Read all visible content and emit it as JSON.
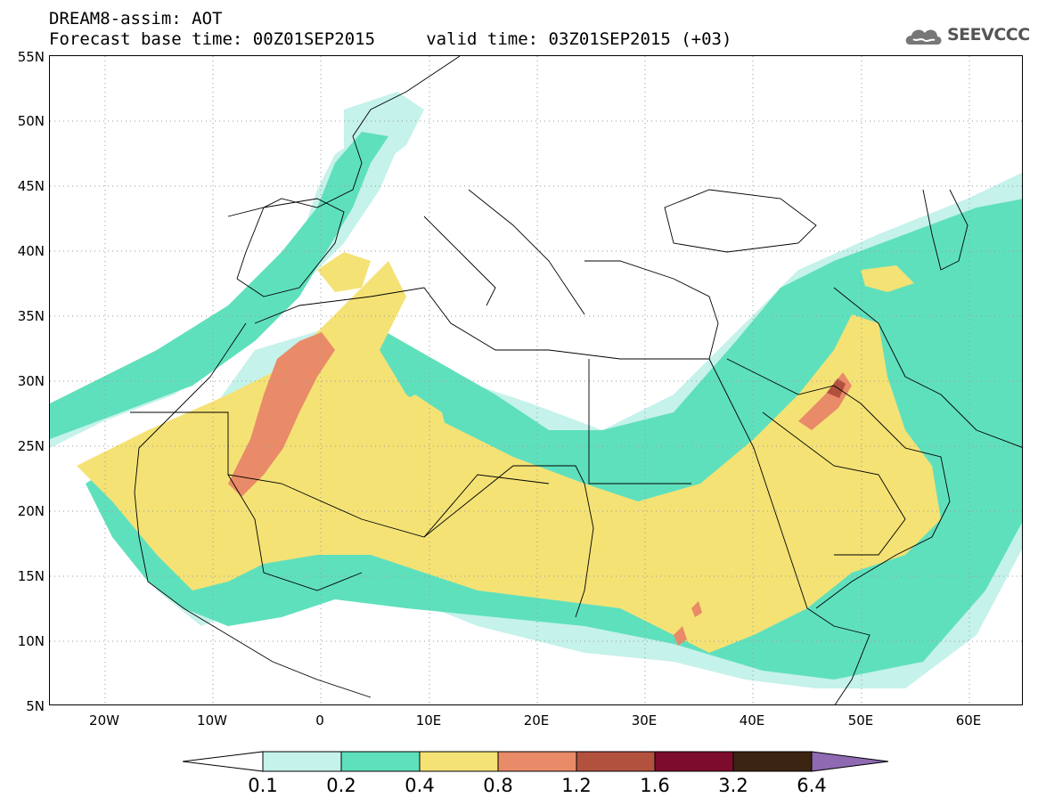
{
  "header": {
    "title_line1": "DREAM8-assim: AOT",
    "title_line2": "Forecast base time: 00Z01SEP2015     valid time: 03Z01SEP2015 (+03)",
    "logo_text": "SEEVCCC"
  },
  "map": {
    "lat_labels": [
      "55N",
      "50N",
      "45N",
      "40N",
      "35N",
      "30N",
      "25N",
      "20N",
      "15N",
      "10N",
      "5N"
    ],
    "lon_labels": [
      "20W",
      "10W",
      "0",
      "10E",
      "20E",
      "30E",
      "40E",
      "50E",
      "60E"
    ],
    "colors": {
      "level_0_1": "#c5f2ea",
      "level_0_2": "#5fe0bd",
      "level_0_4": "#f4e275",
      "level_0_8": "#e98b68",
      "level_1_2": "#b3513f",
      "level_1_6": "#7d0b2b",
      "level_3_2": "#3b2412",
      "level_6_4": "#8f6ab3",
      "border": "#000000",
      "grid": "#9a9a9a"
    }
  },
  "legend": {
    "labels": [
      "0.1",
      "0.2",
      "0.4",
      "0.8",
      "1.2",
      "1.6",
      "3.2",
      "6.4"
    ],
    "colors": [
      "#c5f2ea",
      "#5fe0bd",
      "#f4e275",
      "#e98b68",
      "#b3513f",
      "#7d0b2b",
      "#3b2412"
    ],
    "under_color": "#ffffff",
    "over_color": "#8f6ab3"
  }
}
